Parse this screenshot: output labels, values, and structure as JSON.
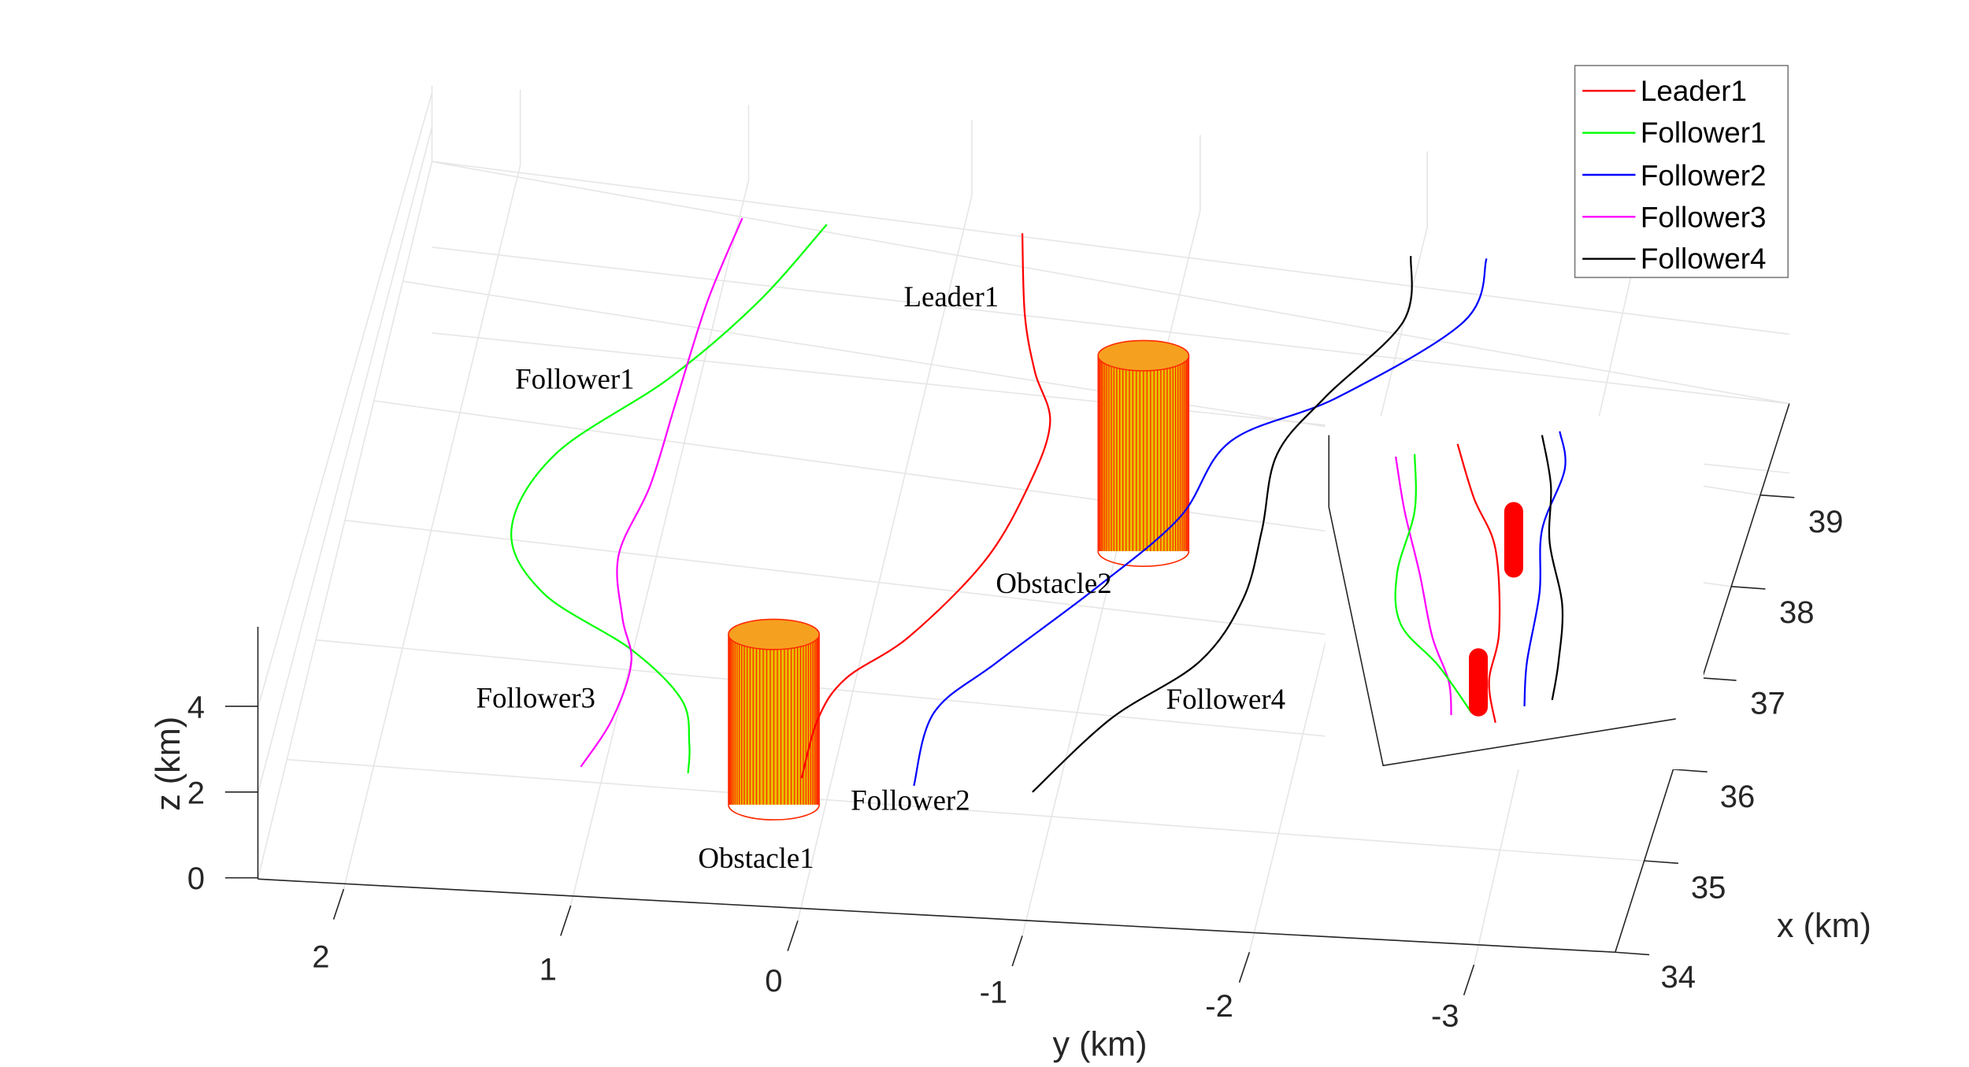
{
  "chart_data": {
    "type": "line",
    "dimension": "3d",
    "title": "",
    "xlabel": "x (km)",
    "ylabel": "y (km)",
    "zlabel": "z (km)",
    "x_ticks": [
      "34",
      "35",
      "36",
      "37",
      "38",
      "39"
    ],
    "y_ticks": [
      "2",
      "1",
      "0",
      "-1",
      "-2",
      "-3"
    ],
    "z_ticks": [
      "0",
      "2",
      "4"
    ],
    "xlim": [
      34,
      40
    ],
    "ylim": [
      -3.5,
      2.4
    ],
    "zlim": [
      0,
      5.5
    ],
    "grid": true,
    "legend_position": "top-right",
    "series": [
      {
        "name": "Leader1",
        "color": "#ff0000"
      },
      {
        "name": "Follower1",
        "color": "#00ff00"
      },
      {
        "name": "Follower2",
        "color": "#0000ff"
      },
      {
        "name": "Follower3",
        "color": "#ff00ff"
      },
      {
        "name": "Follower4",
        "color": "#000000"
      }
    ],
    "obstacles": [
      {
        "name": "Obstacle1",
        "color": "#ff3300"
      },
      {
        "name": "Obstacle2",
        "color": "#ff3300"
      }
    ],
    "annotations": [
      "Leader1",
      "Follower1",
      "Follower2",
      "Follower3",
      "Follower4",
      "Obstacle1",
      "Obstacle2"
    ],
    "inset": "top-view projection of trajectories and obstacles"
  }
}
